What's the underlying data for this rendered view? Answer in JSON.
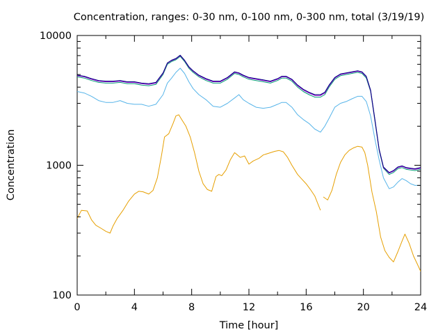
{
  "chart_data": {
    "type": "line",
    "title": "Concentration, ranges: 0-30 nm, 0-100 nm, 0-300 nm, total (3/19/19)",
    "xlabel": "Time [hour]",
    "ylabel": "Concentration",
    "xlim": [
      0,
      24
    ],
    "ylim": [
      100,
      10000
    ],
    "yscale": "log",
    "grid": false,
    "legend": "none",
    "x_ticks": [
      0,
      4,
      8,
      12,
      16,
      20,
      24
    ],
    "x_tick_labels": [
      "0",
      "4",
      "8",
      "12",
      "16",
      "20",
      "24"
    ],
    "y_ticks": [
      100,
      1000,
      10000
    ],
    "y_tick_labels": [
      "100",
      "1000",
      "10000"
    ],
    "series": [
      {
        "color": "#e69f00",
        "x": [
          0,
          0.3,
          0.7,
          1.0,
          1.3,
          1.7,
          2.0,
          2.3,
          2.5,
          2.8,
          3.2,
          3.6,
          4.0,
          4.3,
          4.6,
          5.0,
          5.3,
          5.6,
          5.9,
          6.1,
          6.4,
          6.7,
          6.9,
          7.1,
          7.3,
          7.6,
          7.9,
          8.2,
          8.5,
          8.8,
          9.1,
          9.4,
          9.7,
          9.9,
          10.1,
          10.4,
          10.7,
          11.0,
          11.2,
          11.4,
          11.7,
          12.0,
          12.3,
          12.7,
          13.0,
          13.4,
          13.8,
          14.1,
          14.4,
          14.7,
          15.0,
          15.4,
          15.7,
          16.0,
          16.3,
          16.6,
          16.8,
          17.0
        ],
        "y": [
          390,
          450,
          445,
          380,
          345,
          325,
          310,
          300,
          340,
          390,
          450,
          530,
          600,
          630,
          625,
          600,
          640,
          800,
          1200,
          1650,
          1750,
          2100,
          2400,
          2450,
          2250,
          2000,
          1650,
          1250,
          900,
          720,
          650,
          630,
          820,
          850,
          830,
          920,
          1100,
          1250,
          1200,
          1150,
          1180,
          1020,
          1080,
          1130,
          1200,
          1240,
          1280,
          1300,
          1270,
          1150,
          1000,
          850,
          780,
          720,
          650,
          580,
          510,
          450
        ]
      },
      {
        "color": "#e69f00",
        "x": [
          17.2,
          17.5,
          17.8,
          18.1,
          18.4,
          18.7,
          19.0,
          19.3,
          19.6,
          19.9,
          20.1,
          20.3,
          20.6,
          20.9,
          21.2,
          21.5,
          21.8,
          22.1,
          22.4,
          22.7,
          22.9,
          23.2,
          23.5,
          23.8,
          24.0
        ],
        "y": [
          570,
          540,
          640,
          850,
          1050,
          1200,
          1300,
          1360,
          1400,
          1380,
          1250,
          1000,
          620,
          440,
          280,
          220,
          195,
          180,
          215,
          260,
          295,
          250,
          200,
          170,
          152
        ]
      },
      {
        "color": "#56b4e9",
        "x": [
          0,
          0.5,
          1.0,
          1.5,
          2.0,
          2.5,
          3.0,
          3.5,
          4.0,
          4.5,
          5.0,
          5.5,
          6.0,
          6.3,
          6.6,
          6.9,
          7.2,
          7.5,
          7.8,
          8.1,
          8.5,
          9.0,
          9.5,
          10.0,
          10.5,
          11.0,
          11.3,
          11.6,
          12.0,
          12.5,
          13.0,
          13.5,
          14.0,
          14.3,
          14.6,
          15.0,
          15.4,
          15.8,
          16.2,
          16.6,
          17.0,
          17.3,
          17.6,
          18.0,
          18.4,
          18.8,
          19.2,
          19.6,
          19.9,
          20.2,
          20.5,
          20.8,
          21.1,
          21.4,
          21.8,
          22.1,
          22.4,
          22.7,
          23.0,
          23.3,
          23.6,
          24.0
        ],
        "y": [
          3700,
          3600,
          3400,
          3150,
          3050,
          3050,
          3150,
          3000,
          2950,
          2950,
          2850,
          2950,
          3500,
          4300,
          4700,
          5200,
          5600,
          5100,
          4400,
          3900,
          3500,
          3200,
          2850,
          2800,
          3000,
          3300,
          3500,
          3200,
          3000,
          2800,
          2750,
          2800,
          2950,
          3050,
          3050,
          2800,
          2450,
          2250,
          2100,
          1900,
          1800,
          2000,
          2300,
          2800,
          3000,
          3100,
          3250,
          3400,
          3400,
          3100,
          2400,
          1600,
          1100,
          800,
          660,
          680,
          740,
          790,
          760,
          720,
          700,
          700
        ]
      },
      {
        "color": "#009e73",
        "x": [
          0,
          0.5,
          1.0,
          1.5,
          2.0,
          2.5,
          3.0,
          3.5,
          4.0,
          4.5,
          5.0,
          5.5,
          6.0,
          6.3,
          6.6,
          6.9,
          7.2,
          7.5,
          7.8,
          8.1,
          8.5,
          9.0,
          9.5,
          10.0,
          10.5,
          11.0,
          11.3,
          11.6,
          12.0,
          12.5,
          13.0,
          13.5,
          14.0,
          14.3,
          14.6,
          15.0,
          15.4,
          15.8,
          16.2,
          16.6,
          17.0,
          17.3,
          17.6,
          18.0,
          18.4,
          18.8,
          19.2,
          19.6,
          19.9,
          20.2,
          20.5,
          20.8,
          21.1,
          21.4,
          21.8,
          22.1,
          22.4,
          22.7,
          23.0,
          23.3,
          23.6,
          24.0
        ],
        "y": [
          4800,
          4700,
          4500,
          4350,
          4300,
          4300,
          4350,
          4250,
          4250,
          4150,
          4100,
          4200,
          5000,
          6000,
          6300,
          6500,
          6900,
          6300,
          5600,
          5200,
          4800,
          4500,
          4300,
          4300,
          4600,
          5100,
          5000,
          4800,
          4600,
          4500,
          4400,
          4300,
          4500,
          4700,
          4700,
          4450,
          4000,
          3700,
          3500,
          3350,
          3350,
          3500,
          4000,
          4600,
          4900,
          5000,
          5100,
          5200,
          5100,
          4700,
          3700,
          2200,
          1300,
          950,
          850,
          880,
          940,
          960,
          930,
          920,
          910,
          930
        ]
      },
      {
        "color": "#9400d3",
        "x": [
          0,
          0.5,
          1.0,
          1.5,
          2.0,
          2.5,
          3.0,
          3.5,
          4.0,
          4.5,
          5.0,
          5.5,
          6.0,
          6.3,
          6.6,
          6.9,
          7.2,
          7.5,
          7.8,
          8.1,
          8.5,
          9.0,
          9.5,
          10.0,
          10.5,
          11.0,
          11.3,
          11.6,
          12.0,
          12.5,
          13.0,
          13.5,
          14.0,
          14.3,
          14.6,
          15.0,
          15.4,
          15.8,
          16.2,
          16.6,
          17.0,
          17.3,
          17.6,
          18.0,
          18.4,
          18.8,
          19.2,
          19.6,
          19.9,
          20.2,
          20.5,
          20.8,
          21.1,
          21.4,
          21.8,
          22.1,
          22.4,
          22.7,
          23.0,
          23.3,
          23.6,
          24.0
        ],
        "y": [
          4900,
          4800,
          4600,
          4450,
          4400,
          4400,
          4450,
          4350,
          4350,
          4250,
          4200,
          4300,
          5100,
          6100,
          6400,
          6600,
          7000,
          6400,
          5700,
          5300,
          4900,
          4600,
          4400,
          4400,
          4700,
          5200,
          5100,
          4900,
          4700,
          4600,
          4500,
          4400,
          4600,
          4800,
          4800,
          4550,
          4100,
          3800,
          3600,
          3450,
          3450,
          3600,
          4100,
          4700,
          5000,
          5100,
          5200,
          5300,
          5200,
          4800,
          3750,
          2250,
          1320,
          960,
          870,
          900,
          960,
          980,
          950,
          940,
          930,
          950
        ]
      },
      {
        "color": "#000080",
        "x": [
          0,
          0.5,
          1.0,
          1.5,
          2.0,
          2.5,
          3.0,
          3.5,
          4.0,
          4.5,
          5.0,
          5.5,
          6.0,
          6.3,
          6.6,
          6.9,
          7.2,
          7.5,
          7.8,
          8.1,
          8.5,
          9.0,
          9.5,
          10.0,
          10.5,
          11.0,
          11.3,
          11.6,
          12.0,
          12.5,
          13.0,
          13.5,
          14.0,
          14.3,
          14.6,
          15.0,
          15.4,
          15.8,
          16.2,
          16.6,
          17.0,
          17.3,
          17.6,
          18.0,
          18.4,
          18.8,
          19.2,
          19.6,
          19.9,
          20.2,
          20.5,
          20.8,
          21.1,
          21.4,
          21.8,
          22.1,
          22.4,
          22.7,
          23.0,
          23.3,
          23.6,
          24.0
        ],
        "y": [
          4950,
          4850,
          4650,
          4500,
          4450,
          4450,
          4500,
          4400,
          4400,
          4300,
          4250,
          4350,
          5150,
          6150,
          6450,
          6650,
          7050,
          6450,
          5750,
          5350,
          4950,
          4650,
          4450,
          4450,
          4750,
          5250,
          5150,
          4950,
          4750,
          4650,
          4550,
          4450,
          4650,
          4850,
          4850,
          4600,
          4150,
          3850,
          3650,
          3500,
          3500,
          3650,
          4150,
          4750,
          5050,
          5150,
          5250,
          5350,
          5250,
          4850,
          3800,
          2280,
          1330,
          970,
          880,
          910,
          970,
          990,
          960,
          950,
          940,
          960
        ]
      }
    ]
  }
}
